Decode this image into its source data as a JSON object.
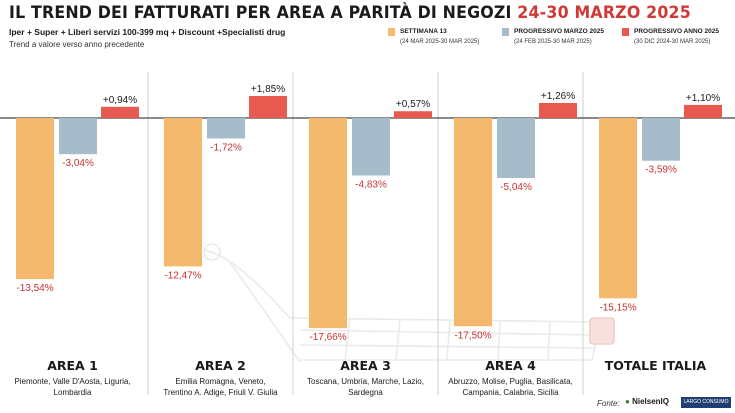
{
  "header": {
    "title_main": "IL TREND DEI FATTURATI PER AREA A PARITÀ DI NEGOZI",
    "title_date": "24-30 MARZO 2025",
    "subtitle": "Iper + Super + Liberi servizi 100-399 mq + Discount +Specialisti drug",
    "note": "Trend a valore verso anno precedente"
  },
  "legend": [
    {
      "name": "SETTIMANA 13",
      "range": "(24 MAR 2025-30 MAR 2025)",
      "color": "#f5b96e"
    },
    {
      "name": "PROGRESSIVO MARZO 2025",
      "range": "(24 FEB 2025-30 MAR 2025)",
      "color": "#a6bccb"
    },
    {
      "name": "PROGRESSIVO ANNO 2025",
      "range": "(30 DIC 2024-30 MAR 2025)",
      "color": "#e85a50"
    }
  ],
  "chart_data": {
    "type": "bar",
    "categories": [
      "AREA 1",
      "AREA 2",
      "AREA 3",
      "AREA 4",
      "TOTALE ITALIA"
    ],
    "category_regions": [
      [
        "Piemonte, Valle D'Aosta, Liguria,",
        "Lombardia"
      ],
      [
        "Emilia Romagna, Veneto,",
        "Trentino A. Adige, Friuli V. Giulia"
      ],
      [
        "Toscana, Umbria, Marche, Lazio,",
        "Sardegna"
      ],
      [
        "Abruzzo, Molise, Puglia, Basilicata,",
        "Campania, Calabria, Sicilia"
      ],
      []
    ],
    "series": [
      {
        "name": "SETTIMANA 13",
        "values": [
          -13.54,
          -12.47,
          -17.66,
          -17.5,
          -15.15
        ]
      },
      {
        "name": "PROGRESSIVO MARZO 2025",
        "values": [
          -3.04,
          -1.72,
          -4.83,
          -5.04,
          -3.59
        ]
      },
      {
        "name": "PROGRESSIVO ANNO 2025",
        "values": [
          0.94,
          1.85,
          0.57,
          1.26,
          1.1
        ]
      }
    ],
    "labels": [
      [
        "-13,54%",
        "-3,04%",
        "+0,94%"
      ],
      [
        "-12,47%",
        "-1,72%",
        "+1,85%"
      ],
      [
        "-17,66%",
        "-4,83%",
        "+0,57%"
      ],
      [
        "-17,50%",
        "-5,04%",
        "+1,26%"
      ],
      [
        "-15,15%",
        "-3,59%",
        "+1,10%"
      ]
    ],
    "unit": "%",
    "colors": {
      "settimana": "#f5b96e",
      "marzo": "#a6bccb",
      "anno": "#e85a50",
      "negative_label": "#c8332f",
      "positive_label": "#1a1a1a"
    }
  },
  "footer": {
    "source_label": "Fonte:",
    "source_logo": "NielsenIQ",
    "partner_logo": "LARGO CONSUMO"
  }
}
